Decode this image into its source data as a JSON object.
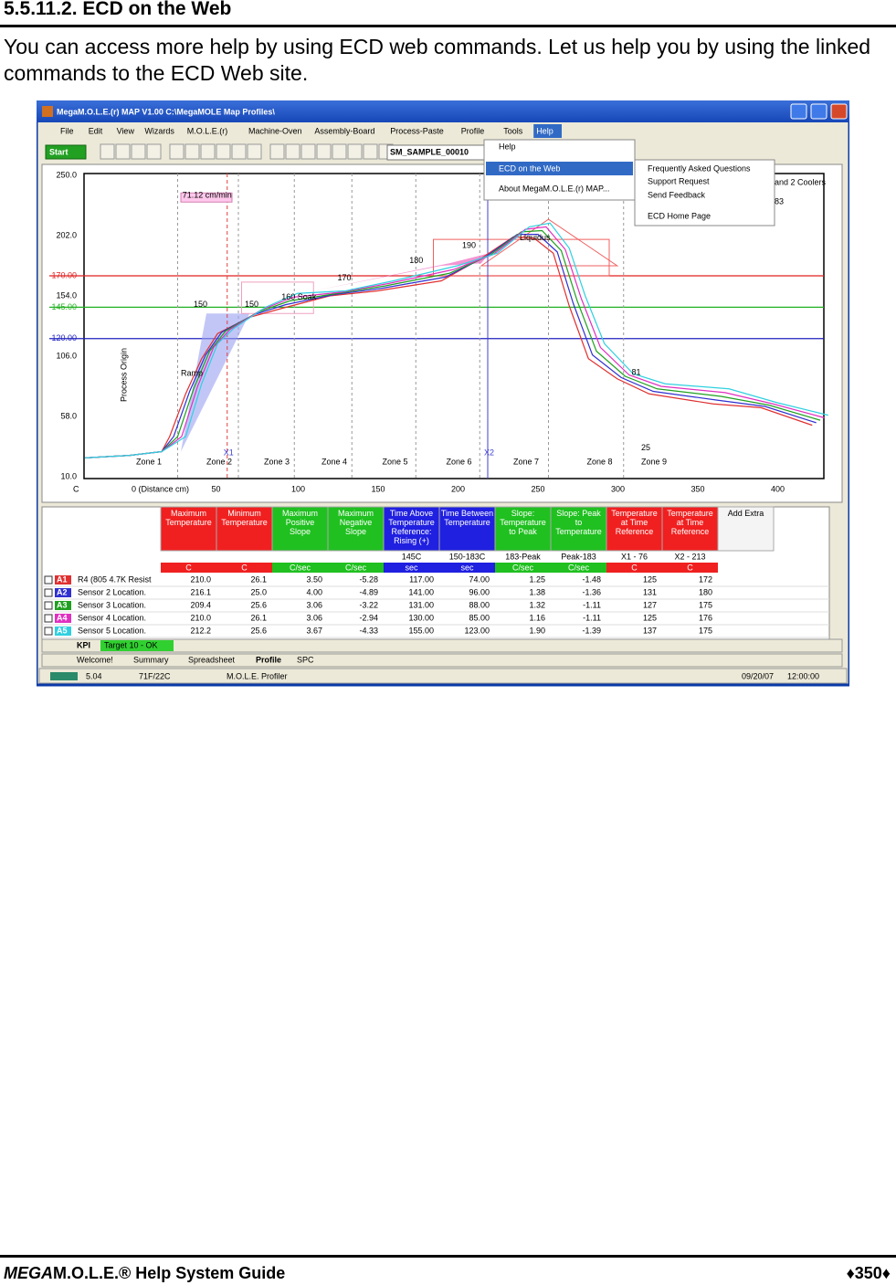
{
  "header": {
    "title": "5.5.11.2. ECD on the Web"
  },
  "body": {
    "paragraph": "You can access more help by using ECD web commands. Let us help you by using the linked commands to the ECD Web site."
  },
  "screenshot": {
    "window_title": "MegaM.O.L.E.(r) MAP V1.00    C:\\MegaMOLE Map Profiles\\",
    "menu": [
      "File",
      "Edit",
      "View",
      "Wizards",
      "M.O.L.E.(r)",
      "Machine-Oven",
      "Assembly-Board",
      "Process-Paste",
      "Profile",
      "Tools",
      "Help"
    ],
    "toolbar": {
      "start": "Start",
      "file": "SM_SAMPLE_00010"
    },
    "help_menu": [
      "Help",
      "ECD on the Web",
      "About MegaM.O.L.E.(r) MAP..."
    ],
    "submenu": [
      "Frequently Asked Questions",
      "Support Request",
      "Send Feedback",
      "ECD Home Page"
    ],
    "chart": {
      "y_labels": [
        "250.0",
        "202.0",
        "170.00",
        "154.0",
        "145.00",
        "120.00",
        "106.0",
        "58.0",
        "10.0"
      ],
      "x_labels": [
        "0 (Distance cm)",
        "50",
        "100",
        "150",
        "200",
        "250",
        "300",
        "350",
        "400"
      ],
      "corner": "C",
      "annotations": [
        "71.12 cm/min",
        "Process Origin",
        "Ramp",
        "150",
        "150",
        "160 Soak",
        "170",
        "180",
        "190",
        "Liquidus",
        "81",
        "25",
        "X1",
        "X2",
        "and 2 Coolers",
        "83"
      ],
      "zones": [
        "Zone 1",
        "Zone 2",
        "Zone 3",
        "Zone 4",
        "Zone 5",
        "Zone 6",
        "Zone 7",
        "Zone 8",
        "Zone 9"
      ]
    },
    "table": {
      "headers": [
        "Maximum Temperature",
        "Minimum Temperature",
        "Maximum Positive Slope",
        "Maximum Negative Slope",
        "Time Above Temperature Reference: Rising (+)",
        "Time Between Temperature",
        "Slope: Temperature to Peak",
        "Slope: Peak to Temperature",
        "Temperature at Time Reference",
        "Temperature at Time Reference",
        "Add Extra"
      ],
      "refs": [
        null,
        null,
        null,
        null,
        "145C",
        "150-183C",
        "183-Peak",
        "Peak-183",
        "X1 - 76",
        "X2 - 213"
      ],
      "units": [
        "C",
        "C",
        "C/sec",
        "C/sec",
        "sec",
        "sec",
        "C/sec",
        "C/sec",
        "C",
        "C"
      ],
      "rows": [
        {
          "id": "A1",
          "name": "R4 (805 4.7K Resist",
          "cells": [
            "210.0",
            "26.1",
            "3.50",
            "-5.28",
            "117.00",
            "74.00",
            "1.25",
            "-1.48",
            "125",
            "172"
          ]
        },
        {
          "id": "A2",
          "name": "Sensor 2 Location.",
          "cells": [
            "216.1",
            "25.0",
            "4.00",
            "-4.89",
            "141.00",
            "96.00",
            "1.38",
            "-1.36",
            "131",
            "180"
          ]
        },
        {
          "id": "A3",
          "name": "Sensor 3 Location.",
          "cells": [
            "209.4",
            "25.6",
            "3.06",
            "-3.22",
            "131.00",
            "88.00",
            "1.32",
            "-1.11",
            "127",
            "175"
          ]
        },
        {
          "id": "A4",
          "name": "Sensor 4 Location.",
          "cells": [
            "210.0",
            "26.1",
            "3.06",
            "-2.94",
            "130.00",
            "85.00",
            "1.16",
            "-1.11",
            "125",
            "176"
          ]
        },
        {
          "id": "A5",
          "name": "Sensor 5 Location.",
          "cells": [
            "212.2",
            "25.6",
            "3.67",
            "-4.33",
            "155.00",
            "123.00",
            "1.90",
            "-1.39",
            "137",
            "175"
          ]
        }
      ]
    },
    "sheet_tabs": [
      "KPI",
      "Target 10 - OK"
    ],
    "tabs": [
      "Welcome!",
      "Summary",
      "Spreadsheet",
      "Profile",
      "SPC"
    ],
    "status": [
      "5.04",
      "71F/22C",
      "M.O.L.E. Profiler",
      "09/20/07",
      "12:00:00"
    ]
  },
  "footer": {
    "brand": "MEGA",
    "guide": "M.O.L.E.® Help System Guide",
    "page": "♦350♦"
  }
}
